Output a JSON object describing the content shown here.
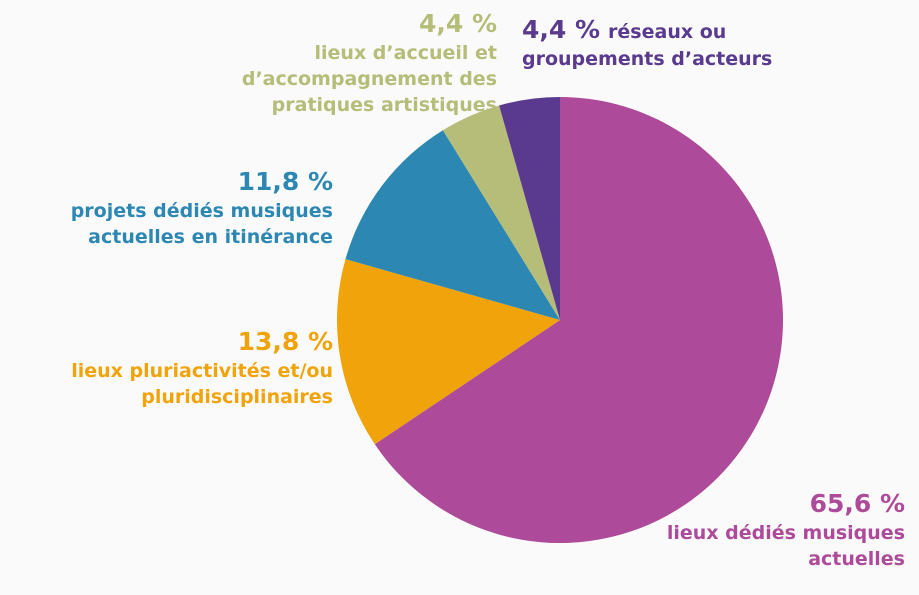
{
  "chart_data": {
    "type": "pie",
    "categories": [
      "lieux dédiés musiques actuelles",
      "lieux pluriactivités et/ou pluridisciplinaires",
      "projets dédiés musiques actuelles en itinérance",
      "lieux d’accueil et d’accompagnement des pratiques artistiques",
      "réseaux ou groupements d’acteurs"
    ],
    "values": [
      65.6,
      13.8,
      11.8,
      4.4,
      4.4
    ],
    "value_labels": [
      "65,6 %",
      "13,8 %",
      "11,8 %",
      "4,4 %",
      "4,4 %"
    ],
    "colors": [
      "#ad4a99",
      "#f0a30a",
      "#2d87b3",
      "#b5bd78",
      "#5a3a8e"
    ]
  }
}
